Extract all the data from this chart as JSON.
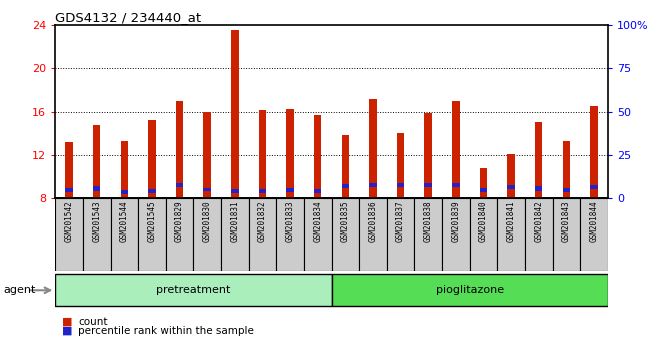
{
  "title": "GDS4132 / 234440_at",
  "samples": [
    "GSM201542",
    "GSM201543",
    "GSM201544",
    "GSM201545",
    "GSM201829",
    "GSM201830",
    "GSM201831",
    "GSM201832",
    "GSM201833",
    "GSM201834",
    "GSM201835",
    "GSM201836",
    "GSM201837",
    "GSM201838",
    "GSM201839",
    "GSM201840",
    "GSM201841",
    "GSM201842",
    "GSM201843",
    "GSM201844"
  ],
  "count_values": [
    13.2,
    14.8,
    13.3,
    15.2,
    17.0,
    16.0,
    23.5,
    16.1,
    16.2,
    15.7,
    13.8,
    17.2,
    14.0,
    15.9,
    17.0,
    10.8,
    12.1,
    15.0,
    13.3,
    16.5
  ],
  "percentile_values": [
    8.8,
    8.9,
    8.6,
    8.7,
    9.2,
    8.8,
    8.7,
    8.7,
    8.8,
    8.7,
    9.1,
    9.2,
    9.2,
    9.2,
    9.2,
    8.8,
    9.0,
    8.9,
    8.8,
    9.0
  ],
  "blue_heights": [
    0.38,
    0.38,
    0.35,
    0.38,
    0.38,
    0.35,
    0.35,
    0.35,
    0.38,
    0.35,
    0.38,
    0.38,
    0.38,
    0.38,
    0.38,
    0.38,
    0.38,
    0.38,
    0.38,
    0.38
  ],
  "bar_color": "#cc2200",
  "blue_color": "#2222cc",
  "pretreatment_samples": 10,
  "pretreatment_label": "pretreatment",
  "pioglitazone_label": "pioglitazone",
  "agent_label": "agent",
  "ylim_left": [
    8,
    24
  ],
  "ylim_right": [
    0,
    100
  ],
  "yticks_left": [
    8,
    12,
    16,
    20,
    24
  ],
  "yticks_right": [
    0,
    25,
    50,
    75,
    100
  ],
  "label_bg": "#cccccc",
  "pretreatment_color": "#aaeebb",
  "pioglitazone_color": "#55dd55",
  "bar_width": 0.55
}
